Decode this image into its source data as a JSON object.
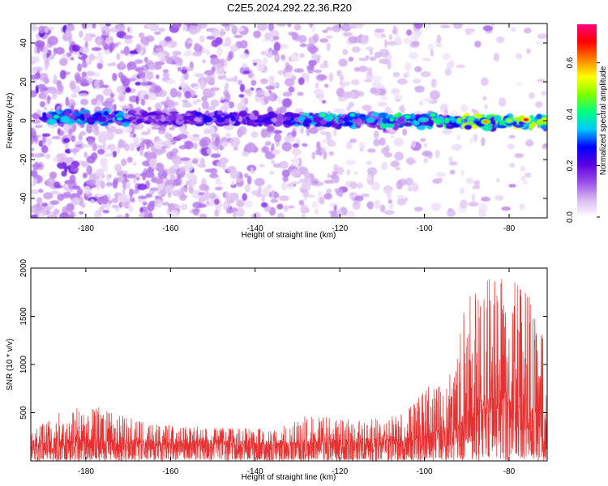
{
  "title": "C2E5.2024.292.22.36.R20",
  "chart_data": [
    {
      "type": "heatmap",
      "xlabel": "Height of straight line (km)",
      "ylabel": "Frequency (Hz)",
      "xlim": [
        -193,
        -71
      ],
      "ylim": [
        -50,
        50
      ],
      "x_ticks": [
        -180,
        -160,
        -140,
        -120,
        -100,
        -80
      ],
      "y_ticks": [
        -40,
        -20,
        0,
        20,
        40
      ],
      "colorbar": {
        "label": "Normalized spectral amplitude",
        "range": [
          0,
          0.75
        ],
        "ticks": [
          0.0,
          0.2,
          0.4,
          0.6
        ],
        "tick_labels": [
          "0.0",
          "0.2",
          "0.4",
          "0.6"
        ],
        "colors": [
          "#ffffff",
          "#d9b8f0",
          "#9b4de8",
          "#5a00e0",
          "#0000ff",
          "#00c8ff",
          "#00ff80",
          "#80ff00",
          "#ffff00",
          "#ff8000",
          "#ff0000",
          "#ff0080"
        ]
      },
      "features": [
        {
          "name": "dominant band near 0 Hz",
          "x_range": [
            -190,
            -71
          ],
          "freq_center": 2,
          "freq_center_end": -1,
          "peak_amplitude": 0.7,
          "peak_x": -76
        },
        {
          "name": "scattered background",
          "x_range": [
            -193,
            -90
          ],
          "freq_range": [
            -50,
            50
          ],
          "typical_amplitude": 0.12
        }
      ]
    },
    {
      "type": "line",
      "xlabel": "Height of straight line (km)",
      "ylabel": "SNR (10 * v/v)",
      "xlim": [
        -193,
        -71
      ],
      "ylim": [
        0,
        2000
      ],
      "x_ticks": [
        -180,
        -160,
        -140,
        -120,
        -100,
        -80
      ],
      "y_ticks": [
        500,
        1000,
        1500,
        2000
      ],
      "line_color": "#e83030",
      "envelope": [
        {
          "x": -193,
          "max": 300,
          "baseline": 170
        },
        {
          "x": -185,
          "max": 550,
          "baseline": 180
        },
        {
          "x": -175,
          "max": 560,
          "baseline": 180
        },
        {
          "x": -165,
          "max": 380,
          "baseline": 175
        },
        {
          "x": -150,
          "max": 350,
          "baseline": 170
        },
        {
          "x": -135,
          "max": 340,
          "baseline": 170
        },
        {
          "x": -128,
          "max": 480,
          "baseline": 180
        },
        {
          "x": -115,
          "max": 420,
          "baseline": 185
        },
        {
          "x": -105,
          "max": 490,
          "baseline": 200
        },
        {
          "x": -100,
          "max": 770,
          "baseline": 230
        },
        {
          "x": -95,
          "max": 780,
          "baseline": 280
        },
        {
          "x": -90,
          "max": 1680,
          "baseline": 420
        },
        {
          "x": -85,
          "max": 1880,
          "baseline": 550
        },
        {
          "x": -80,
          "max": 1950,
          "baseline": 600
        },
        {
          "x": -76,
          "max": 2000,
          "baseline": 550
        },
        {
          "x": -73,
          "max": 1300,
          "baseline": 400
        },
        {
          "x": -71,
          "max": 1380,
          "baseline": 350
        }
      ]
    }
  ]
}
